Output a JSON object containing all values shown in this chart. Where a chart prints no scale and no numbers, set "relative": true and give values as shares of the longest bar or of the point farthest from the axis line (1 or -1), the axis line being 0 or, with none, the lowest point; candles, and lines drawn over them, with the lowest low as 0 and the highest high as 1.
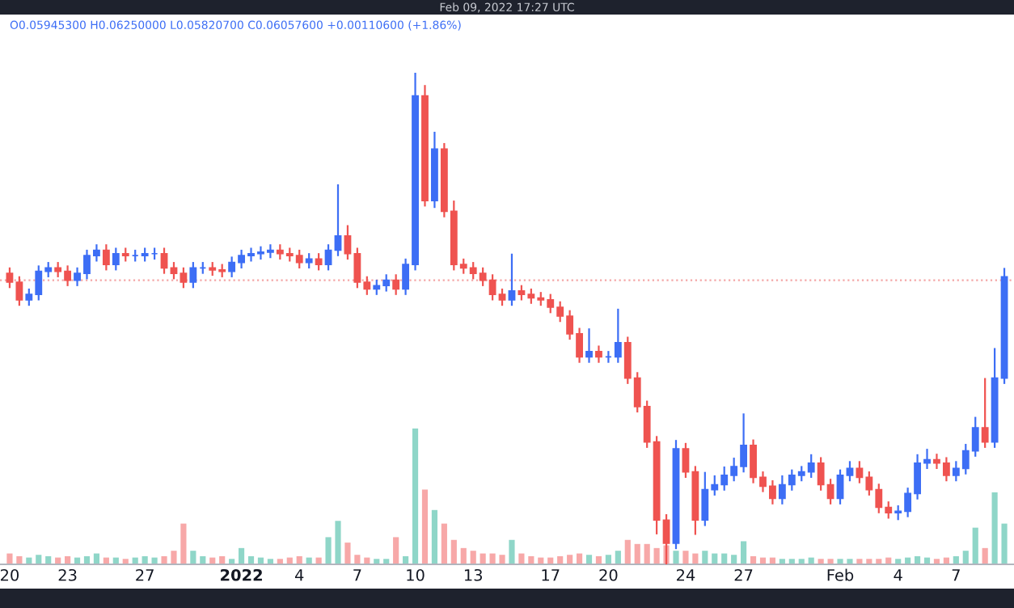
{
  "chart_data": [
    {
      "type": "candlestick",
      "relative": true,
      "grid": false,
      "colors": [
        "#ef5350",
        "#ef5350",
        "#3d6ef5",
        "#3d6ef5",
        "#3d6ef5",
        "#ef5350",
        "#ef5350",
        "#3d6ef5",
        "#3d6ef5",
        "#3d6ef5",
        "#ef5350",
        "#3d6ef5",
        "#ef5350",
        "#3d6ef5",
        "#3d6ef5",
        "#3d6ef5",
        "#ef5350",
        "#ef5350",
        "#ef5350",
        "#3d6ef5",
        "#3d6ef5",
        "#ef5350",
        "#ef5350",
        "#3d6ef5",
        "#3d6ef5",
        "#3d6ef5",
        "#3d6ef5",
        "#3d6ef5",
        "#ef5350",
        "#ef5350",
        "#ef5350",
        "#3d6ef5",
        "#ef5350",
        "#3d6ef5",
        "#3d6ef5",
        "#ef5350",
        "#ef5350",
        "#ef5350",
        "#3d6ef5",
        "#3d6ef5",
        "#ef5350",
        "#3d6ef5",
        "#3d6ef5",
        "#ef5350",
        "#3d6ef5",
        "#ef5350",
        "#ef5350",
        "#ef5350",
        "#ef5350",
        "#ef5350",
        "#ef5350",
        "#ef5350",
        "#3d6ef5",
        "#ef5350",
        "#ef5350",
        "#ef5350",
        "#ef5350",
        "#ef5350",
        "#ef5350",
        "#ef5350",
        "#3d6ef5",
        "#ef5350",
        "#3d6ef5",
        "#3d6ef5",
        "#ef5350",
        "#ef5350",
        "#ef5350",
        "#ef5350",
        "#ef5350",
        "#3d6ef5",
        "#ef5350",
        "#ef5350",
        "#3d6ef5",
        "#3d6ef5",
        "#3d6ef5",
        "#3d6ef5",
        "#3d6ef5",
        "#ef5350",
        "#ef5350",
        "#ef5350",
        "#3d6ef5",
        "#3d6ef5",
        "#3d6ef5",
        "#3d6ef5",
        "#ef5350",
        "#ef5350",
        "#3d6ef5",
        "#3d6ef5",
        "#ef5350",
        "#ef5350",
        "#ef5350",
        "#ef5350",
        "#3d6ef5",
        "#3d6ef5",
        "#3d6ef5",
        "#3d6ef5",
        "#ef5350",
        "#ef5350",
        "#3d6ef5",
        "#3d6ef5",
        "#3d6ef5",
        "#ef5350",
        "#3d6ef5",
        "#3d6ef5"
      ],
      "annotations": [
        "Feb 09, 2022 17:27 UTC",
        "O0.05945300 H0.06250000 L0.05820700 C0.06057600 +0.00110600 (+1.86%)"
      ],
      "ref_lines": [
        {
          "axis": "y",
          "value": 0.578,
          "color": "#f4a6a6",
          "line_style": "dotted"
        }
      ],
      "xlim": [
        "2021-12-19T12:00",
        "2022-02-10T00:00"
      ],
      "xticks": [
        {
          "value": "2021-12-20",
          "label": "20"
        },
        {
          "value": "2021-12-23",
          "label": "23"
        },
        {
          "value": "2021-12-27",
          "label": "27"
        },
        {
          "value": "2022-01-01",
          "label": "2022"
        },
        {
          "value": "2022-01-04",
          "label": "4"
        },
        {
          "value": "2022-01-07",
          "label": "7"
        },
        {
          "value": "2022-01-10",
          "label": "10"
        },
        {
          "value": "2022-01-13",
          "label": "13"
        },
        {
          "value": "2022-01-17",
          "label": "17"
        },
        {
          "value": "2022-01-20",
          "label": "20"
        },
        {
          "value": "2022-01-24",
          "label": "24"
        },
        {
          "value": "2022-01-27",
          "label": "27"
        },
        {
          "value": "2022-02-01",
          "label": "Feb"
        },
        {
          "value": "2022-02-04",
          "label": "4"
        },
        {
          "value": "2022-02-07",
          "label": "7"
        }
      ],
      "x": [
        "2021-12-20T00:00",
        "2021-12-20T12:00",
        "2021-12-21T00:00",
        "2021-12-21T12:00",
        "2021-12-22T00:00",
        "2021-12-22T12:00",
        "2021-12-23T00:00",
        "2021-12-23T12:00",
        "2021-12-24T00:00",
        "2021-12-24T12:00",
        "2021-12-25T00:00",
        "2021-12-25T12:00",
        "2021-12-26T00:00",
        "2021-12-26T12:00",
        "2021-12-27T00:00",
        "2021-12-27T12:00",
        "2021-12-28T00:00",
        "2021-12-28T12:00",
        "2021-12-29T00:00",
        "2021-12-29T12:00",
        "2021-12-30T00:00",
        "2021-12-30T12:00",
        "2021-12-31T00:00",
        "2021-12-31T12:00",
        "2022-01-01T00:00",
        "2022-01-01T12:00",
        "2022-01-02T00:00",
        "2022-01-02T12:00",
        "2022-01-03T00:00",
        "2022-01-03T12:00",
        "2022-01-04T00:00",
        "2022-01-04T12:00",
        "2022-01-05T00:00",
        "2022-01-05T12:00",
        "2022-01-06T00:00",
        "2022-01-06T12:00",
        "2022-01-07T00:00",
        "2022-01-07T12:00",
        "2022-01-08T00:00",
        "2022-01-08T12:00",
        "2022-01-09T00:00",
        "2022-01-09T12:00",
        "2022-01-10T00:00",
        "2022-01-10T12:00",
        "2022-01-11T00:00",
        "2022-01-11T12:00",
        "2022-01-12T00:00",
        "2022-01-12T12:00",
        "2022-01-13T00:00",
        "2022-01-13T12:00",
        "2022-01-14T00:00",
        "2022-01-14T12:00",
        "2022-01-15T00:00",
        "2022-01-15T12:00",
        "2022-01-16T00:00",
        "2022-01-16T12:00",
        "2022-01-17T00:00",
        "2022-01-17T12:00",
        "2022-01-18T00:00",
        "2022-01-18T12:00",
        "2022-01-19T00:00",
        "2022-01-19T12:00",
        "2022-01-20T00:00",
        "2022-01-20T12:00",
        "2022-01-21T00:00",
        "2022-01-21T12:00",
        "2022-01-22T00:00",
        "2022-01-22T12:00",
        "2022-01-23T00:00",
        "2022-01-23T12:00",
        "2022-01-24T00:00",
        "2022-01-24T12:00",
        "2022-01-25T00:00",
        "2022-01-25T12:00",
        "2022-01-26T00:00",
        "2022-01-26T12:00",
        "2022-01-27T00:00",
        "2022-01-27T12:00",
        "2022-01-28T00:00",
        "2022-01-28T12:00",
        "2022-01-29T00:00",
        "2022-01-29T12:00",
        "2022-01-30T00:00",
        "2022-01-30T12:00",
        "2022-01-31T00:00",
        "2022-01-31T12:00",
        "2022-02-01T00:00",
        "2022-02-01T12:00",
        "2022-02-02T00:00",
        "2022-02-02T12:00",
        "2022-02-03T00:00",
        "2022-02-03T12:00",
        "2022-02-04T00:00",
        "2022-02-04T12:00",
        "2022-02-05T00:00",
        "2022-02-05T12:00",
        "2022-02-06T00:00",
        "2022-02-06T12:00",
        "2022-02-07T00:00",
        "2022-02-07T12:00",
        "2022-02-08T00:00",
        "2022-02-08T12:00",
        "2022-02-09T00:00",
        "2022-02-09T12:00"
      ],
      "ohlc": [
        [
          0.592,
          0.604,
          0.562,
          0.574
        ],
        [
          0.574,
          0.586,
          0.526,
          0.538
        ],
        [
          0.538,
          0.561,
          0.526,
          0.549
        ],
        [
          0.549,
          0.608,
          0.537,
          0.596
        ],
        [
          0.596,
          0.615,
          0.584,
          0.603
        ],
        [
          0.603,
          0.615,
          0.584,
          0.596
        ],
        [
          0.596,
          0.608,
          0.566,
          0.578
        ],
        [
          0.578,
          0.604,
          0.566,
          0.592
        ],
        [
          0.592,
          0.64,
          0.58,
          0.628
        ],
        [
          0.628,
          0.651,
          0.616,
          0.639
        ],
        [
          0.639,
          0.651,
          0.598,
          0.61
        ],
        [
          0.61,
          0.644,
          0.598,
          0.632
        ],
        [
          0.632,
          0.644,
          0.616,
          0.628
        ],
        [
          0.628,
          0.64,
          0.616,
          0.628
        ],
        [
          0.628,
          0.644,
          0.616,
          0.632
        ],
        [
          0.632,
          0.644,
          0.62,
          0.632
        ],
        [
          0.632,
          0.644,
          0.591,
          0.603
        ],
        [
          0.603,
          0.615,
          0.58,
          0.592
        ],
        [
          0.592,
          0.604,
          0.562,
          0.574
        ],
        [
          0.574,
          0.615,
          0.562,
          0.603
        ],
        [
          0.603,
          0.615,
          0.591,
          0.603
        ],
        [
          0.603,
          0.615,
          0.587,
          0.599
        ],
        [
          0.599,
          0.611,
          0.584,
          0.596
        ],
        [
          0.596,
          0.626,
          0.584,
          0.614
        ],
        [
          0.614,
          0.64,
          0.602,
          0.628
        ],
        [
          0.628,
          0.644,
          0.616,
          0.632
        ],
        [
          0.632,
          0.647,
          0.62,
          0.635
        ],
        [
          0.635,
          0.651,
          0.623,
          0.639
        ],
        [
          0.639,
          0.651,
          0.62,
          0.632
        ],
        [
          0.632,
          0.644,
          0.616,
          0.628
        ],
        [
          0.628,
          0.64,
          0.602,
          0.614
        ],
        [
          0.614,
          0.633,
          0.602,
          0.621
        ],
        [
          0.621,
          0.633,
          0.598,
          0.61
        ],
        [
          0.61,
          0.651,
          0.598,
          0.639
        ],
        [
          0.639,
          0.773,
          0.627,
          0.668
        ],
        [
          0.668,
          0.69,
          0.62,
          0.632
        ],
        [
          0.632,
          0.644,
          0.562,
          0.574
        ],
        [
          0.574,
          0.586,
          0.548,
          0.56
        ],
        [
          0.56,
          0.579,
          0.548,
          0.567
        ],
        [
          0.567,
          0.59,
          0.555,
          0.578
        ],
        [
          0.578,
          0.59,
          0.548,
          0.56
        ],
        [
          0.56,
          0.622,
          0.548,
          0.61
        ],
        [
          0.61,
          1,
          0.598,
          0.953
        ],
        [
          0.953,
          0.975,
          0.728,
          0.74
        ],
        [
          0.74,
          0.88,
          0.725,
          0.845
        ],
        [
          0.845,
          0.857,
          0.706,
          0.718
        ],
        [
          0.718,
          0.74,
          0.598,
          0.61
        ],
        [
          0.61,
          0.622,
          0.591,
          0.603
        ],
        [
          0.603,
          0.615,
          0.58,
          0.592
        ],
        [
          0.592,
          0.604,
          0.566,
          0.578
        ],
        [
          0.578,
          0.59,
          0.537,
          0.549
        ],
        [
          0.549,
          0.561,
          0.526,
          0.538
        ],
        [
          0.538,
          0.632,
          0.526,
          0.556
        ],
        [
          0.556,
          0.568,
          0.537,
          0.549
        ],
        [
          0.549,
          0.561,
          0.53,
          0.542
        ],
        [
          0.542,
          0.554,
          0.526,
          0.538
        ],
        [
          0.538,
          0.55,
          0.511,
          0.523
        ],
        [
          0.523,
          0.535,
          0.493,
          0.505
        ],
        [
          0.505,
          0.517,
          0.457,
          0.469
        ],
        [
          0.469,
          0.481,
          0.41,
          0.422
        ],
        [
          0.422,
          0.48,
          0.41,
          0.433
        ],
        [
          0.433,
          0.445,
          0.41,
          0.422
        ],
        [
          0.422,
          0.434,
          0.41,
          0.422
        ],
        [
          0.422,
          0.52,
          0.41,
          0.451
        ],
        [
          0.451,
          0.463,
          0.367,
          0.379
        ],
        [
          0.379,
          0.391,
          0.309,
          0.321
        ],
        [
          0.321,
          0.333,
          0.237,
          0.249
        ],
        [
          0.249,
          0.261,
          0.061,
          0.09
        ],
        [
          0.09,
          0.102,
          0,
          0.043
        ],
        [
          0.043,
          0.253,
          0.031,
          0.235
        ],
        [
          0.235,
          0.247,
          0.176,
          0.188
        ],
        [
          0.188,
          0.2,
          0.06,
          0.09
        ],
        [
          0.09,
          0.188,
          0.078,
          0.152
        ],
        [
          0.152,
          0.181,
          0.14,
          0.162
        ],
        [
          0.162,
          0.199,
          0.15,
          0.181
        ],
        [
          0.181,
          0.217,
          0.169,
          0.199
        ],
        [
          0.199,
          0.307,
          0.187,
          0.242
        ],
        [
          0.242,
          0.254,
          0.165,
          0.177
        ],
        [
          0.177,
          0.189,
          0.147,
          0.159
        ],
        [
          0.159,
          0.171,
          0.122,
          0.134
        ],
        [
          0.134,
          0.181,
          0.122,
          0.162
        ],
        [
          0.162,
          0.193,
          0.15,
          0.181
        ],
        [
          0.181,
          0.2,
          0.169,
          0.188
        ],
        [
          0.188,
          0.224,
          0.176,
          0.206
        ],
        [
          0.206,
          0.218,
          0.15,
          0.162
        ],
        [
          0.162,
          0.174,
          0.122,
          0.134
        ],
        [
          0.134,
          0.193,
          0.122,
          0.181
        ],
        [
          0.181,
          0.21,
          0.169,
          0.195
        ],
        [
          0.195,
          0.21,
          0.165,
          0.177
        ],
        [
          0.177,
          0.189,
          0.14,
          0.152
        ],
        [
          0.152,
          0.164,
          0.104,
          0.116
        ],
        [
          0.116,
          0.128,
          0.093,
          0.105
        ],
        [
          0.105,
          0.12,
          0.09,
          0.108
        ],
        [
          0.108,
          0.156,
          0.096,
          0.144
        ],
        [
          0.144,
          0.224,
          0.132,
          0.206
        ],
        [
          0.206,
          0.235,
          0.194,
          0.213
        ],
        [
          0.213,
          0.225,
          0.194,
          0.206
        ],
        [
          0.206,
          0.218,
          0.169,
          0.181
        ],
        [
          0.181,
          0.21,
          0.169,
          0.195
        ],
        [
          0.195,
          0.245,
          0.183,
          0.231
        ],
        [
          0.231,
          0.3,
          0.219,
          0.278
        ],
        [
          0.278,
          0.379,
          0.237,
          0.249
        ],
        [
          0.249,
          0.44,
          0.237,
          0.379
        ],
        [
          0.379,
          0.603,
          0.367,
          0.585
        ]
      ]
    },
    {
      "type": "bar",
      "relative": true,
      "categories": [
        null,
        null,
        null,
        null,
        null,
        null,
        null,
        null,
        null,
        null,
        null,
        null,
        null,
        null,
        null,
        null,
        null,
        null,
        null,
        null,
        null,
        null,
        null,
        null,
        null,
        null,
        null,
        null,
        null,
        null,
        null,
        null,
        null,
        null,
        null,
        null,
        null,
        null,
        null,
        null,
        null,
        null,
        null,
        null,
        null,
        null,
        null,
        null,
        null,
        null,
        null,
        null,
        null,
        null,
        null,
        null,
        null,
        null,
        null,
        null,
        null,
        null,
        null,
        null,
        null,
        null,
        null,
        null,
        null,
        null,
        null,
        null,
        null,
        null,
        null,
        null,
        null,
        null,
        null,
        null,
        null,
        null,
        null,
        null,
        null,
        null,
        null,
        null,
        null,
        null,
        null,
        null,
        null,
        null,
        null,
        null,
        null,
        null,
        null,
        null,
        null,
        null,
        null,
        null
      ],
      "values": [
        0.08,
        0.06,
        0.05,
        0.07,
        0.06,
        0.05,
        0.06,
        0.05,
        0.06,
        0.08,
        0.05,
        0.05,
        0.04,
        0.05,
        0.06,
        0.05,
        0.06,
        0.1,
        0.3,
        0.1,
        0.06,
        0.05,
        0.06,
        0.04,
        0.12,
        0.06,
        0.05,
        0.04,
        0.04,
        0.05,
        0.06,
        0.05,
        0.05,
        0.2,
        0.32,
        0.16,
        0.07,
        0.05,
        0.04,
        0.04,
        0.2,
        0.06,
        1,
        0.55,
        0.4,
        0.3,
        0.18,
        0.12,
        0.1,
        0.08,
        0.08,
        0.07,
        0.18,
        0.08,
        0.06,
        0.05,
        0.05,
        0.06,
        0.07,
        0.08,
        0.07,
        0.06,
        0.07,
        0.1,
        0.18,
        0.15,
        0.15,
        0.12,
        0.14,
        0.1,
        0.1,
        0.08,
        0.1,
        0.08,
        0.08,
        0.07,
        0.17,
        0.06,
        0.05,
        0.05,
        0.04,
        0.04,
        0.04,
        0.05,
        0.04,
        0.04,
        0.04,
        0.04,
        0.04,
        0.04,
        0.04,
        0.05,
        0.04,
        0.05,
        0.06,
        0.05,
        0.04,
        0.05,
        0.06,
        0.1,
        0.27,
        0.12,
        0.53,
        0.3
      ],
      "colors": [
        "#f7a8a8",
        "#f7a8a8",
        "#8fd6c8",
        "#8fd6c8",
        "#8fd6c8",
        "#f7a8a8",
        "#f7a8a8",
        "#8fd6c8",
        "#8fd6c8",
        "#8fd6c8",
        "#f7a8a8",
        "#8fd6c8",
        "#f7a8a8",
        "#8fd6c8",
        "#8fd6c8",
        "#8fd6c8",
        "#f7a8a8",
        "#f7a8a8",
        "#f7a8a8",
        "#8fd6c8",
        "#8fd6c8",
        "#f7a8a8",
        "#f7a8a8",
        "#8fd6c8",
        "#8fd6c8",
        "#8fd6c8",
        "#8fd6c8",
        "#8fd6c8",
        "#f7a8a8",
        "#f7a8a8",
        "#f7a8a8",
        "#8fd6c8",
        "#f7a8a8",
        "#8fd6c8",
        "#8fd6c8",
        "#f7a8a8",
        "#f7a8a8",
        "#f7a8a8",
        "#8fd6c8",
        "#8fd6c8",
        "#f7a8a8",
        "#8fd6c8",
        "#8fd6c8",
        "#f7a8a8",
        "#8fd6c8",
        "#f7a8a8",
        "#f7a8a8",
        "#f7a8a8",
        "#f7a8a8",
        "#f7a8a8",
        "#f7a8a8",
        "#f7a8a8",
        "#8fd6c8",
        "#f7a8a8",
        "#f7a8a8",
        "#f7a8a8",
        "#f7a8a8",
        "#f7a8a8",
        "#f7a8a8",
        "#f7a8a8",
        "#8fd6c8",
        "#f7a8a8",
        "#8fd6c8",
        "#8fd6c8",
        "#f7a8a8",
        "#f7a8a8",
        "#f7a8a8",
        "#f7a8a8",
        "#f7a8a8",
        "#8fd6c8",
        "#f7a8a8",
        "#f7a8a8",
        "#8fd6c8",
        "#8fd6c8",
        "#8fd6c8",
        "#8fd6c8",
        "#8fd6c8",
        "#f7a8a8",
        "#f7a8a8",
        "#f7a8a8",
        "#8fd6c8",
        "#8fd6c8",
        "#8fd6c8",
        "#8fd6c8",
        "#f7a8a8",
        "#f7a8a8",
        "#8fd6c8",
        "#8fd6c8",
        "#f7a8a8",
        "#f7a8a8",
        "#f7a8a8",
        "#f7a8a8",
        "#8fd6c8",
        "#8fd6c8",
        "#8fd6c8",
        "#8fd6c8",
        "#f7a8a8",
        "#f7a8a8",
        "#8fd6c8",
        "#8fd6c8",
        "#8fd6c8",
        "#f7a8a8",
        "#8fd6c8",
        "#8fd6c8"
      ]
    }
  ]
}
